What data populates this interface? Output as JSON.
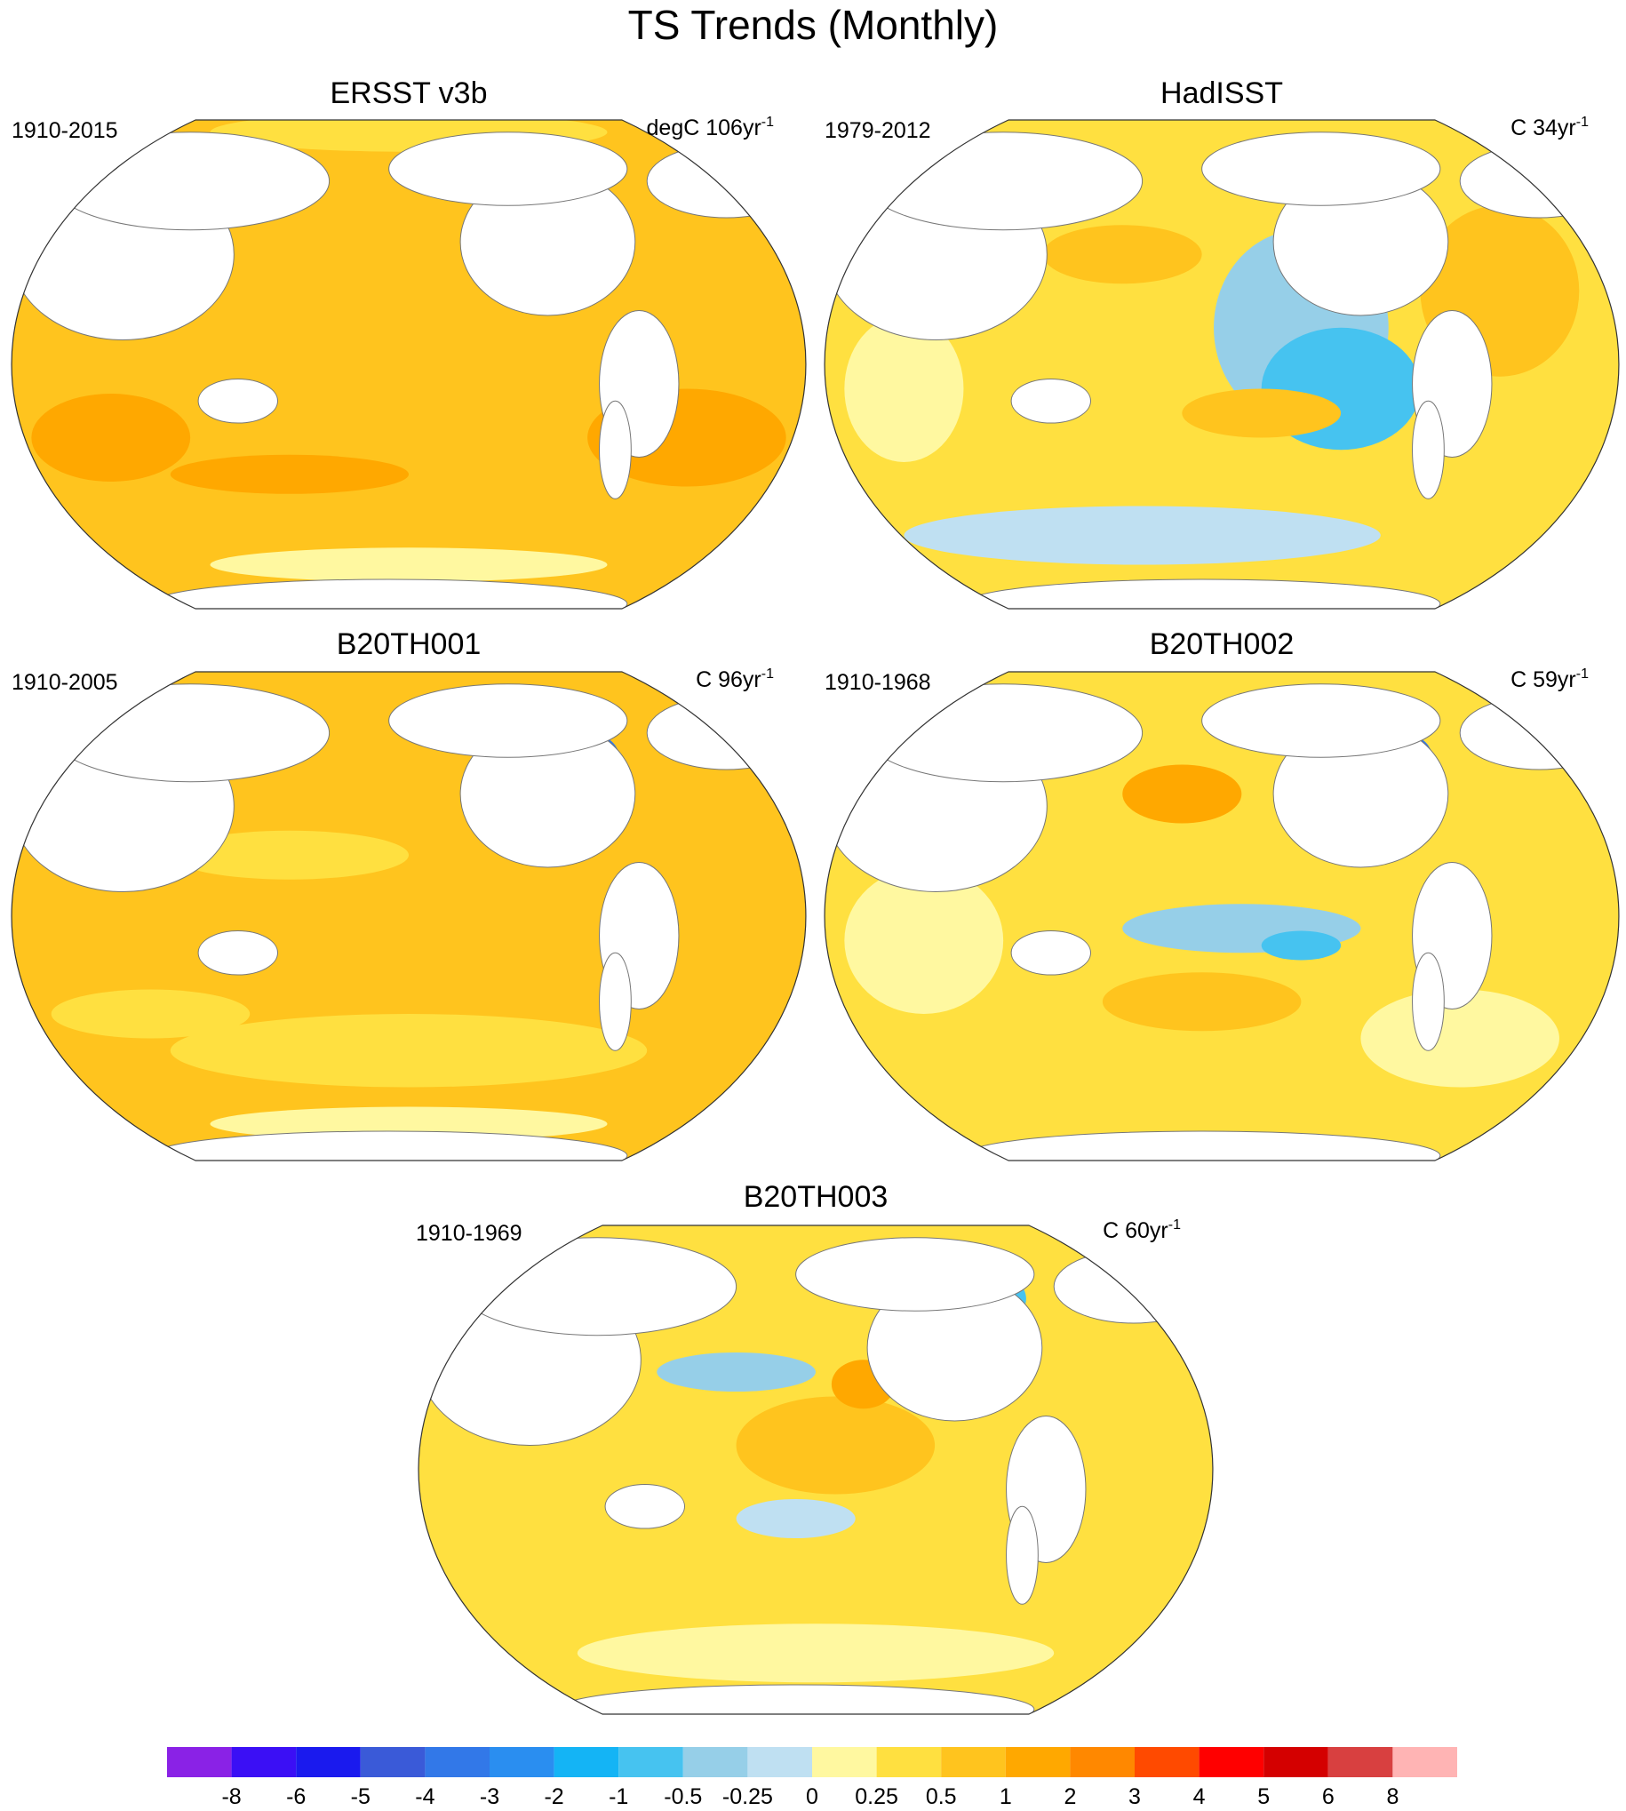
{
  "title": "TS Trends (Monthly)",
  "panels": [
    {
      "title": "ERSST v3b",
      "period": "1910-2015",
      "units": {
        "text": "degC 106yr",
        "sup": "-1"
      }
    },
    {
      "title": "HadISST",
      "period": "1979-2012",
      "units": {
        "text": "C 34yr",
        "sup": "-1"
      }
    },
    {
      "title": "B20TH001",
      "period": "1910-2005",
      "units": {
        "text": "C 96yr",
        "sup": "-1"
      }
    },
    {
      "title": "B20TH002",
      "period": "1910-1968",
      "units": {
        "text": "C 59yr",
        "sup": "-1"
      }
    },
    {
      "title": "B20TH003",
      "period": "1910-1969",
      "units": {
        "text": "C 60yr",
        "sup": "-1"
      }
    }
  ],
  "colorbar": {
    "colors": [
      "#8a22e6",
      "#3b0ff5",
      "#1a1aee",
      "#3a5ad8",
      "#3278e8",
      "#2a8ef0",
      "#14b4f5",
      "#46c3f0",
      "#96cfe8",
      "#bfe0f2",
      "#fff8a0",
      "#ffe040",
      "#ffc41e",
      "#ffa800",
      "#ff8800",
      "#ff4a00",
      "#ff0000",
      "#d40000",
      "#d84040",
      "#ffb4b4"
    ],
    "levels": [
      -8,
      -6,
      -5,
      -4,
      -3,
      -2,
      -1,
      -0.5,
      -0.25,
      0,
      0.25,
      0.5,
      1,
      2,
      3,
      4,
      5,
      6,
      8
    ]
  }
}
